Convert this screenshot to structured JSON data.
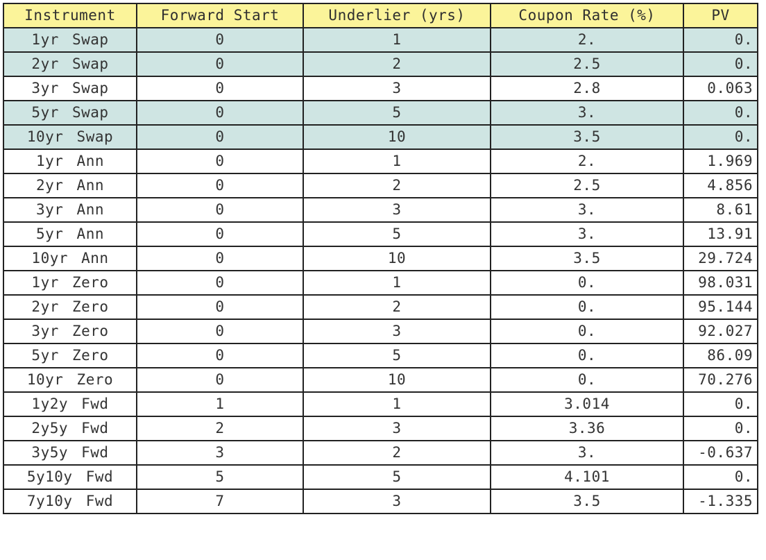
{
  "colors": {
    "header_bg": "#fbf49a",
    "highlight_row_bg": "#cfe5e3",
    "grid_line": "#222222"
  },
  "table": {
    "columns": [
      "Instrument",
      "Forward Start",
      "Underlier (yrs)",
      "Coupon Rate (%)",
      "PV"
    ],
    "rows": [
      {
        "instrument": "1yr Swap",
        "forward_start": "0",
        "underlier": "1",
        "coupon": "2.",
        "pv": "0.",
        "highlighted": true
      },
      {
        "instrument": "2yr Swap",
        "forward_start": "0",
        "underlier": "2",
        "coupon": "2.5",
        "pv": "0.",
        "highlighted": true
      },
      {
        "instrument": "3yr Swap",
        "forward_start": "0",
        "underlier": "3",
        "coupon": "2.8",
        "pv": "0.063",
        "highlighted": false
      },
      {
        "instrument": "5yr Swap",
        "forward_start": "0",
        "underlier": "5",
        "coupon": "3.",
        "pv": "0.",
        "highlighted": true
      },
      {
        "instrument": "10yr Swap",
        "forward_start": "0",
        "underlier": "10",
        "coupon": "3.5",
        "pv": "0.",
        "highlighted": true
      },
      {
        "instrument": "1yr Ann",
        "forward_start": "0",
        "underlier": "1",
        "coupon": "2.",
        "pv": "1.969",
        "highlighted": false
      },
      {
        "instrument": "2yr Ann",
        "forward_start": "0",
        "underlier": "2",
        "coupon": "2.5",
        "pv": "4.856",
        "highlighted": false
      },
      {
        "instrument": "3yr Ann",
        "forward_start": "0",
        "underlier": "3",
        "coupon": "3.",
        "pv": "8.61",
        "highlighted": false
      },
      {
        "instrument": "5yr Ann",
        "forward_start": "0",
        "underlier": "5",
        "coupon": "3.",
        "pv": "13.91",
        "highlighted": false
      },
      {
        "instrument": "10yr Ann",
        "forward_start": "0",
        "underlier": "10",
        "coupon": "3.5",
        "pv": "29.724",
        "highlighted": false
      },
      {
        "instrument": "1yr Zero",
        "forward_start": "0",
        "underlier": "1",
        "coupon": "0.",
        "pv": "98.031",
        "highlighted": false
      },
      {
        "instrument": "2yr Zero",
        "forward_start": "0",
        "underlier": "2",
        "coupon": "0.",
        "pv": "95.144",
        "highlighted": false
      },
      {
        "instrument": "3yr Zero",
        "forward_start": "0",
        "underlier": "3",
        "coupon": "0.",
        "pv": "92.027",
        "highlighted": false
      },
      {
        "instrument": "5yr Zero",
        "forward_start": "0",
        "underlier": "5",
        "coupon": "0.",
        "pv": "86.09",
        "highlighted": false
      },
      {
        "instrument": "10yr Zero",
        "forward_start": "0",
        "underlier": "10",
        "coupon": "0.",
        "pv": "70.276",
        "highlighted": false
      },
      {
        "instrument": "1y2y Fwd",
        "forward_start": "1",
        "underlier": "1",
        "coupon": "3.014",
        "pv": "0.",
        "highlighted": false
      },
      {
        "instrument": "2y5y Fwd",
        "forward_start": "2",
        "underlier": "3",
        "coupon": "3.36",
        "pv": "0.",
        "highlighted": false
      },
      {
        "instrument": "3y5y Fwd",
        "forward_start": "3",
        "underlier": "2",
        "coupon": "3.",
        "pv": "-0.637",
        "highlighted": false
      },
      {
        "instrument": "5y10y Fwd",
        "forward_start": "5",
        "underlier": "5",
        "coupon": "4.101",
        "pv": "0.",
        "highlighted": false
      },
      {
        "instrument": "7y10y Fwd",
        "forward_start": "7",
        "underlier": "3",
        "coupon": "3.5",
        "pv": "-1.335",
        "highlighted": false
      }
    ]
  }
}
